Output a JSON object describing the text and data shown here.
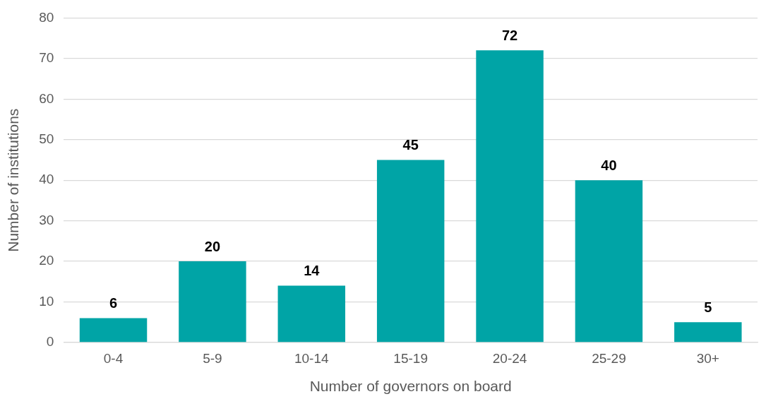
{
  "chart_data": {
    "type": "bar",
    "xlabel": "Number of governors on board",
    "ylabel": "Number of institutions",
    "categories": [
      "0-4",
      "5-9",
      "10-14",
      "15-19",
      "20-24",
      "25-29",
      "30+"
    ],
    "values": [
      6,
      20,
      14,
      45,
      72,
      40,
      5
    ],
    "color": "#00a4a6",
    "ylim": [
      0,
      80
    ],
    "yticks": [
      0,
      10,
      20,
      30,
      40,
      50,
      60,
      70,
      80
    ],
    "grid": "y",
    "data_labels": true,
    "legend": false
  }
}
